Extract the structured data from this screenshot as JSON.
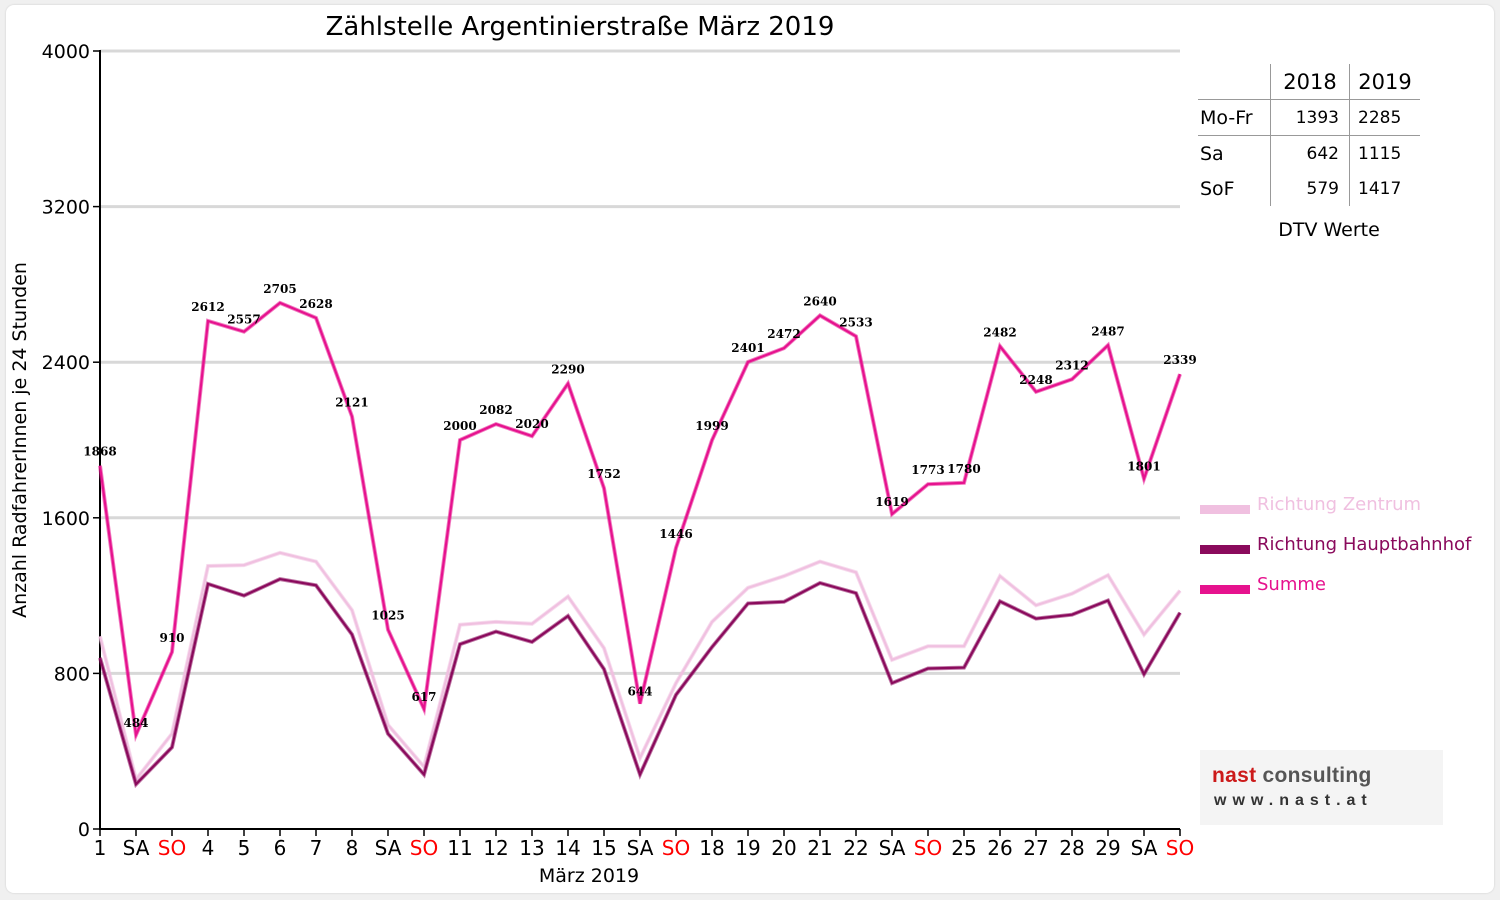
{
  "chart_data": {
    "type": "line",
    "title": "Zählstelle Argentinierstraße März 2019",
    "xlabel": "März 2019",
    "ylabel": "Anzahl RadfahrerInnen je 24 Stunden",
    "ylim": [
      0,
      4000
    ],
    "yticks": [
      0,
      800,
      1600,
      2400,
      3200,
      4000
    ],
    "grid": true,
    "legend_position": "right",
    "categories": [
      "1",
      "SA",
      "SO",
      "4",
      "5",
      "6",
      "7",
      "8",
      "SA",
      "SO",
      "11",
      "12",
      "13",
      "14",
      "15",
      "SA",
      "SO",
      "18",
      "19",
      "20",
      "21",
      "22",
      "SA",
      "SO",
      "25",
      "26",
      "27",
      "28",
      "29",
      "SA",
      "SO"
    ],
    "weekend_markers": [
      "SA",
      "SO"
    ],
    "series": [
      {
        "name": "Richtung Zentrum",
        "color": "#f0c0e0",
        "values": [
          990,
          255,
          490,
          1352,
          1357,
          1420,
          1375,
          1125,
          535,
          320,
          1050,
          1065,
          1055,
          1195,
          930,
          365,
          750,
          1065,
          1240,
          1300,
          1375,
          1320,
          870,
          940,
          940,
          1300,
          1150,
          1210,
          1305,
          1000,
          1225
        ]
      },
      {
        "name": "Richtung Hauptbahnhof",
        "color": "#8a0a5c",
        "values": [
          880,
          230,
          420,
          1260,
          1200,
          1285,
          1253,
          1000,
          490,
          280,
          950,
          1015,
          962,
          1095,
          822,
          280,
          690,
          935,
          1160,
          1168,
          1265,
          1213,
          750,
          825,
          830,
          1170,
          1082,
          1102,
          1175,
          796,
          1112
        ]
      },
      {
        "name": "Summe",
        "color": "#e6128e",
        "values": [
          1868,
          484,
          910,
          2612,
          2557,
          2705,
          2628,
          2121,
          1025,
          617,
          2000,
          2082,
          2020,
          2290,
          1752,
          644,
          1446,
          1999,
          2401,
          2472,
          2640,
          2533,
          1619,
          1773,
          1780,
          2482,
          2248,
          2312,
          2487,
          1801,
          2339
        ]
      }
    ],
    "data_labels": [
      "1868",
      "484",
      "910",
      "2612",
      "2557",
      "2705",
      "2628",
      "2121",
      "1025",
      "617",
      "2000",
      "2082",
      "2020",
      "2290",
      "1752",
      "644",
      "1446",
      "1999",
      "2401",
      "2472",
      "2640",
      "2533",
      "1619",
      "1773",
      "1780",
      "2482",
      "2248",
      "2312",
      "2487",
      "1801",
      "2339"
    ]
  },
  "dtv_table": {
    "headers": [
      "",
      "2018",
      "2019"
    ],
    "rows": [
      {
        "label": "Mo-Fr",
        "v2018": "1393",
        "v2019": "2285"
      },
      {
        "label": "Sa",
        "v2018": "642",
        "v2019": "1115"
      },
      {
        "label": "SoF",
        "v2018": "579",
        "v2019": "1417"
      }
    ],
    "caption": "DTV Werte"
  },
  "legend": [
    {
      "label": "Richtung Zentrum",
      "color": "#f0c0e0"
    },
    {
      "label": "Richtung Hauptbahnhof",
      "color": "#8a0a5c"
    },
    {
      "label": "Summe",
      "color": "#e6128e"
    }
  ],
  "logo": {
    "brand_left": "nast",
    "brand_right": "consulting",
    "brand_left_color": "#cc1a1a",
    "brand_right_color": "#555555",
    "url": "www.nast.at"
  },
  "colors": {
    "weekend_sunday": "#ff0000",
    "gridline": "#d8d8d8"
  }
}
